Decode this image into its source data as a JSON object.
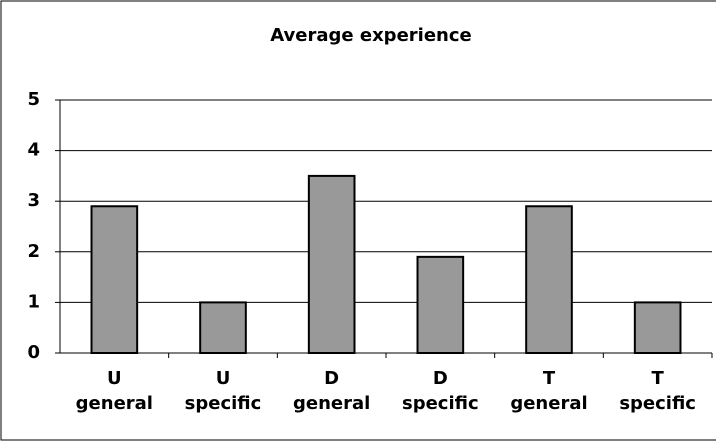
{
  "chart_data": {
    "type": "bar",
    "title": "Average experience",
    "categories": [
      "U\ngeneral",
      "U\nspecific",
      "D\ngeneral",
      "D\nspecific",
      "T\ngeneral",
      "T\nspecific"
    ],
    "values": [
      2.9,
      1,
      3.5,
      1.9,
      2.9,
      1
    ],
    "color": "#999999",
    "ylim": [
      0,
      5
    ],
    "yticks": [
      0,
      1,
      2,
      3,
      4,
      5
    ],
    "grid": true
  }
}
